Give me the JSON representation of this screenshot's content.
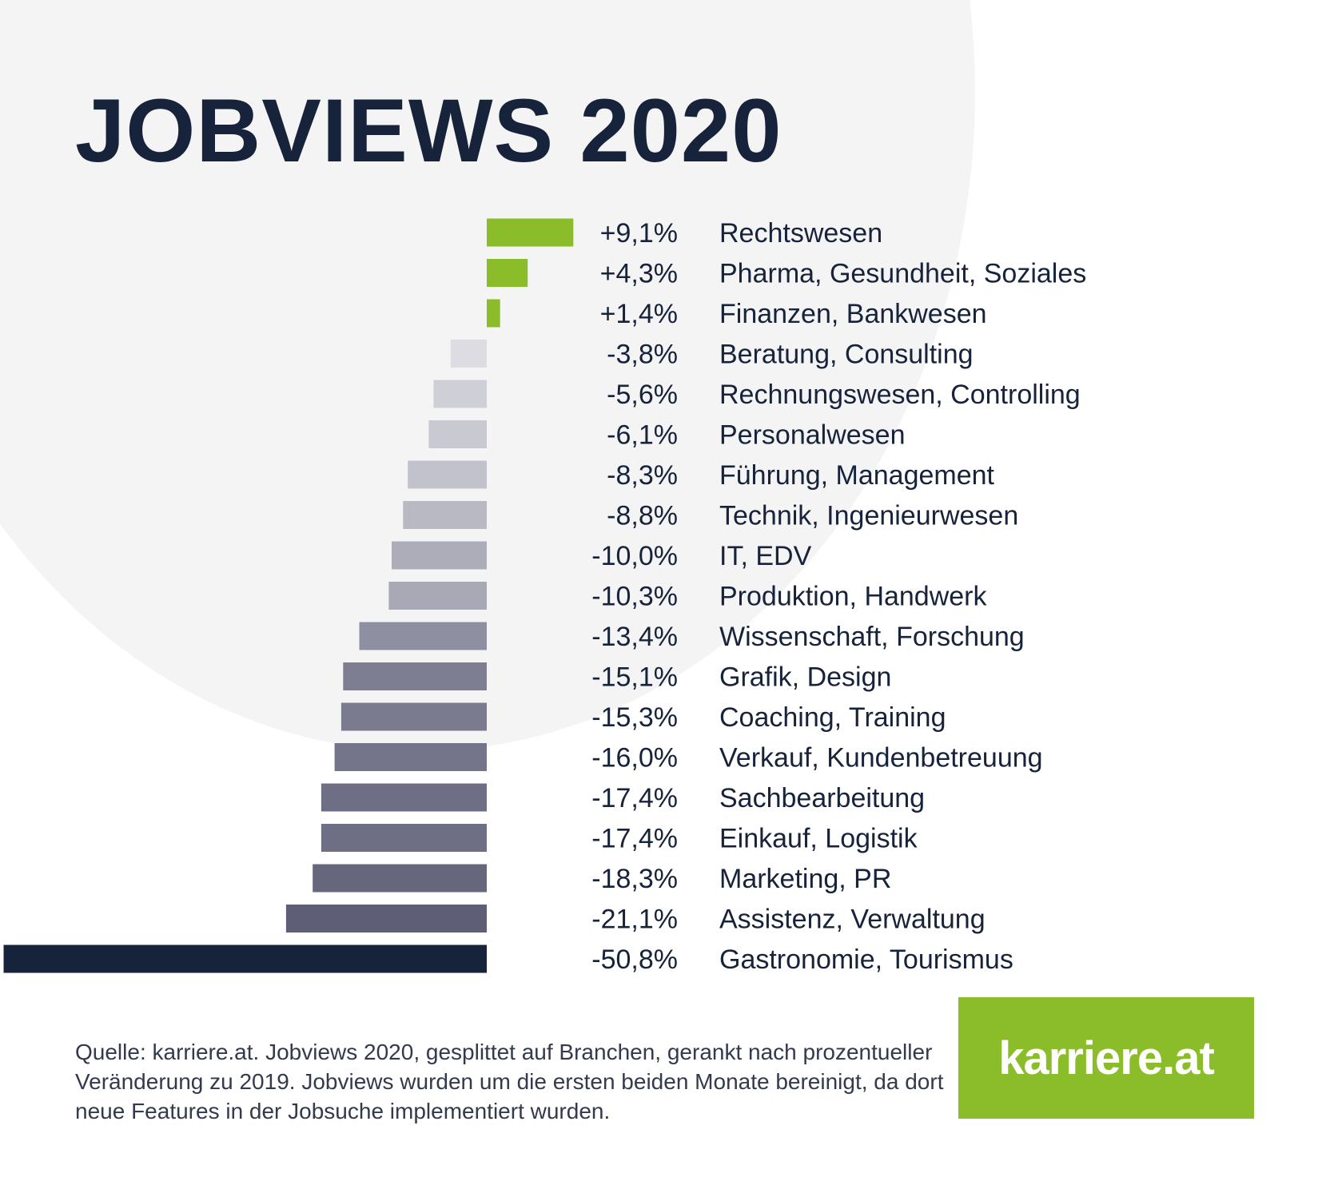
{
  "title": "JOBVIEWS 2020",
  "source": "Quelle: karriere.at. Jobviews 2020, gesplittet auf Branchen, gerankt nach prozentueller Veränderung zu 2019. Jobviews wurden um die ersten beiden Monate bereinigt, da dort neue Features in der Jobsuche implementiert wurden.",
  "logo": "karriere.at",
  "colors": {
    "positive": "#8bbd2a",
    "title": "#17223b",
    "darkest": "#17223b",
    "background_shape": "#f4f4f5"
  },
  "chart_data": {
    "type": "bar",
    "orientation": "horizontal",
    "categories": [
      "Rechtswesen",
      "Pharma, Gesundheit, Soziales",
      "Finanzen, Bankwesen",
      "Beratung, Consulting",
      "Rechnungswesen, Controlling",
      "Personalwesen",
      "Führung, Management",
      "Technik, Ingenieurwesen",
      "IT, EDV",
      "Produktion, Handwerk",
      "Wissenschaft, Forschung",
      "Grafik, Design",
      "Coaching, Training",
      "Verkauf, Kundenbetreuung",
      "Sachbearbeitung",
      "Einkauf, Logistik",
      "Marketing, PR",
      "Assistenz, Verwaltung",
      "Gastronomie, Tourismus"
    ],
    "values": [
      9.1,
      4.3,
      1.4,
      -3.8,
      -5.6,
      -6.1,
      -8.3,
      -8.8,
      -10.0,
      -10.3,
      -13.4,
      -15.1,
      -15.3,
      -16.0,
      -17.4,
      -17.4,
      -18.3,
      -21.1,
      -50.8
    ],
    "value_labels": [
      "+9,1%",
      "+4,3%",
      "+1,4%",
      "-3,8%",
      "-5,6%",
      "-6,1%",
      "-8,3%",
      "-8,8%",
      "-10,0%",
      "-10,3%",
      "-13,4%",
      "-15,1%",
      "-15,3%",
      "-16,0%",
      "-17,4%",
      "-17,4%",
      "-18,3%",
      "-21,1%",
      "-50,8%"
    ],
    "bar_colors": [
      "#8bbd2a",
      "#8bbd2a",
      "#8bbd2a",
      "#dcdce2",
      "#cfcfd7",
      "#c9c9d2",
      "#c2c2cc",
      "#b9b9c4",
      "#adadba",
      "#a9a9b6",
      "#8f8fa2",
      "#7e7e93",
      "#7b7b90",
      "#74748a",
      "#6e6e84",
      "#6e6e84",
      "#66667d",
      "#5e5e76",
      "#17223b"
    ],
    "title": "JOBVIEWS 2020",
    "xlabel": "",
    "ylabel": "",
    "grid": false,
    "legend": "none"
  }
}
